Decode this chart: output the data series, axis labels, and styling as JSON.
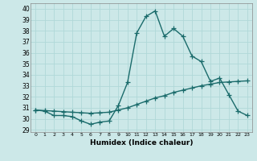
{
  "x": [
    0,
    1,
    2,
    3,
    4,
    5,
    6,
    7,
    8,
    9,
    10,
    11,
    12,
    13,
    14,
    15,
    16,
    17,
    18,
    19,
    20,
    21,
    22,
    23
  ],
  "y_humidex": [
    30.8,
    30.7,
    30.3,
    30.3,
    30.2,
    29.8,
    29.5,
    29.7,
    29.8,
    31.2,
    33.3,
    37.8,
    39.3,
    39.8,
    37.5,
    38.2,
    37.5,
    35.7,
    35.2,
    33.4,
    33.7,
    32.2,
    30.7,
    30.3
  ],
  "y_trend": [
    30.8,
    30.75,
    30.7,
    30.65,
    30.6,
    30.55,
    30.5,
    30.55,
    30.6,
    30.8,
    31.0,
    31.3,
    31.6,
    31.9,
    32.1,
    32.4,
    32.6,
    32.8,
    33.0,
    33.15,
    33.3,
    33.35,
    33.4,
    33.45
  ],
  "xlim": [
    -0.5,
    23.5
  ],
  "ylim": [
    28.8,
    40.5
  ],
  "yticks": [
    29,
    30,
    31,
    32,
    33,
    34,
    35,
    36,
    37,
    38,
    39,
    40
  ],
  "xticks": [
    0,
    1,
    2,
    3,
    4,
    5,
    6,
    7,
    8,
    9,
    10,
    11,
    12,
    13,
    14,
    15,
    16,
    17,
    18,
    19,
    20,
    21,
    22,
    23
  ],
  "xlabel": "Humidex (Indice chaleur)",
  "line_color": "#1a6b6b",
  "bg_color": "#cce8e8",
  "grid_color": "#b0d8d8",
  "marker": "+",
  "marker_size": 4,
  "linewidth": 1.0
}
